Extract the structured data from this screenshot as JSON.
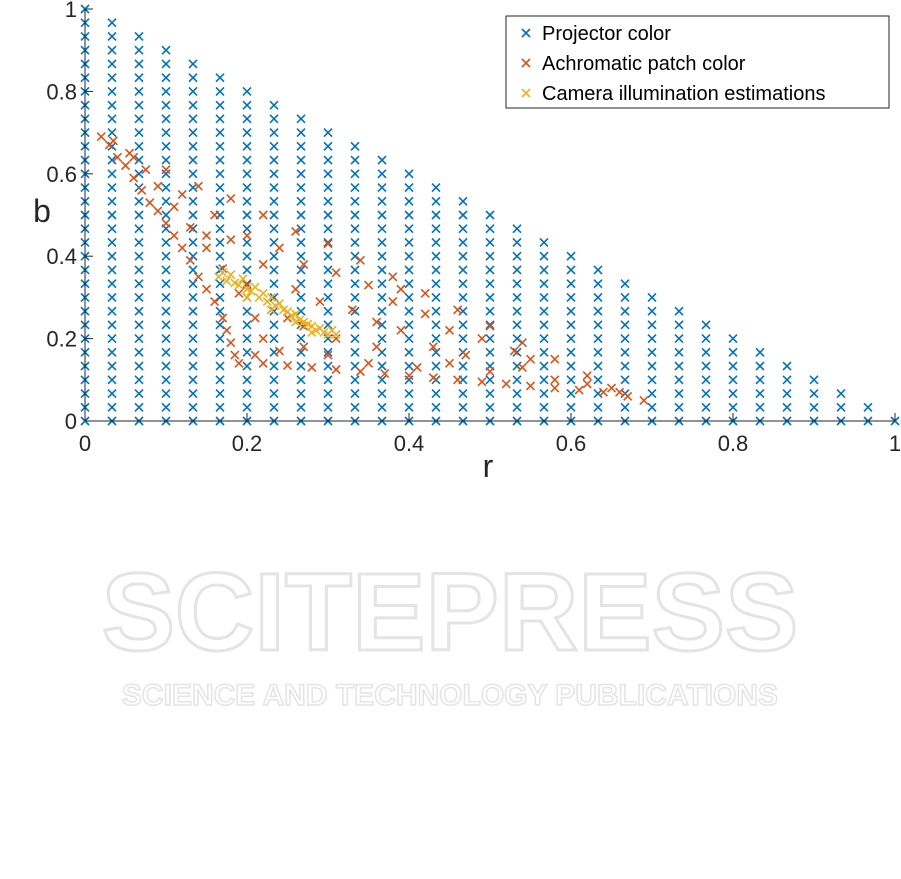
{
  "watermark": {
    "main": "SCITEPRESS",
    "sub": "SCIENCE AND TECHNOLOGY PUBLICATIONS"
  },
  "chart_data": {
    "type": "scatter",
    "xlabel": "r",
    "ylabel": "b",
    "xlim": [
      0,
      1
    ],
    "ylim": [
      0,
      1
    ],
    "xticks": [
      0,
      0.2,
      0.4,
      0.6,
      0.8,
      1
    ],
    "xtick_labels": [
      "0",
      "0.2",
      "0.4",
      "0.6",
      "0.8",
      "1"
    ],
    "yticks": [
      0,
      0.2,
      0.4,
      0.6,
      0.8,
      1
    ],
    "ytick_labels": [
      "0",
      "0.2",
      "0.4",
      "0.6",
      "0.8",
      "1"
    ],
    "grid": false,
    "legend_placement": "top-right",
    "marker": "x",
    "series": [
      {
        "name": "Projector color",
        "color": "#0072BD",
        "grid": {
          "step": 0.0333333,
          "constraint": "r + b <= 1"
        }
      },
      {
        "name": "Achromatic patch color",
        "color": "#D95319",
        "points": [
          [
            0.02,
            0.69
          ],
          [
            0.03,
            0.67
          ],
          [
            0.04,
            0.64
          ],
          [
            0.05,
            0.62
          ],
          [
            0.06,
            0.59
          ],
          [
            0.07,
            0.56
          ],
          [
            0.08,
            0.53
          ],
          [
            0.09,
            0.51
          ],
          [
            0.1,
            0.48
          ],
          [
            0.11,
            0.45
          ],
          [
            0.12,
            0.42
          ],
          [
            0.13,
            0.39
          ],
          [
            0.14,
            0.35
          ],
          [
            0.15,
            0.32
          ],
          [
            0.16,
            0.29
          ],
          [
            0.17,
            0.25
          ],
          [
            0.175,
            0.22
          ],
          [
            0.18,
            0.19
          ],
          [
            0.185,
            0.16
          ],
          [
            0.19,
            0.14
          ],
          [
            0.035,
            0.68
          ],
          [
            0.055,
            0.65
          ],
          [
            0.075,
            0.61
          ],
          [
            0.09,
            0.57
          ],
          [
            0.11,
            0.52
          ],
          [
            0.13,
            0.47
          ],
          [
            0.15,
            0.42
          ],
          [
            0.17,
            0.37
          ],
          [
            0.19,
            0.31
          ],
          [
            0.21,
            0.25
          ],
          [
            0.22,
            0.2
          ],
          [
            0.21,
            0.16
          ],
          [
            0.22,
            0.14
          ],
          [
            0.25,
            0.135
          ],
          [
            0.28,
            0.13
          ],
          [
            0.31,
            0.125
          ],
          [
            0.34,
            0.12
          ],
          [
            0.37,
            0.115
          ],
          [
            0.4,
            0.11
          ],
          [
            0.43,
            0.105
          ],
          [
            0.46,
            0.1
          ],
          [
            0.49,
            0.095
          ],
          [
            0.52,
            0.09
          ],
          [
            0.55,
            0.085
          ],
          [
            0.58,
            0.08
          ],
          [
            0.61,
            0.075
          ],
          [
            0.64,
            0.07
          ],
          [
            0.67,
            0.06
          ],
          [
            0.69,
            0.05
          ],
          [
            0.24,
            0.17
          ],
          [
            0.27,
            0.18
          ],
          [
            0.3,
            0.16
          ],
          [
            0.35,
            0.14
          ],
          [
            0.41,
            0.13
          ],
          [
            0.45,
            0.14
          ],
          [
            0.5,
            0.12
          ],
          [
            0.54,
            0.13
          ],
          [
            0.58,
            0.1
          ],
          [
            0.62,
            0.09
          ],
          [
            0.66,
            0.07
          ],
          [
            0.06,
            0.64
          ],
          [
            0.1,
            0.61
          ],
          [
            0.14,
            0.57
          ],
          [
            0.18,
            0.54
          ],
          [
            0.22,
            0.5
          ],
          [
            0.26,
            0.46
          ],
          [
            0.3,
            0.43
          ],
          [
            0.34,
            0.39
          ],
          [
            0.38,
            0.35
          ],
          [
            0.42,
            0.31
          ],
          [
            0.46,
            0.27
          ],
          [
            0.5,
            0.23
          ],
          [
            0.54,
            0.19
          ],
          [
            0.58,
            0.15
          ],
          [
            0.62,
            0.11
          ],
          [
            0.65,
            0.08
          ],
          [
            0.12,
            0.55
          ],
          [
            0.16,
            0.5
          ],
          [
            0.2,
            0.45
          ],
          [
            0.24,
            0.42
          ],
          [
            0.27,
            0.38
          ],
          [
            0.31,
            0.36
          ],
          [
            0.35,
            0.33
          ],
          [
            0.38,
            0.29
          ],
          [
            0.42,
            0.26
          ],
          [
            0.45,
            0.22
          ],
          [
            0.49,
            0.2
          ],
          [
            0.53,
            0.17
          ],
          [
            0.55,
            0.15
          ],
          [
            0.18,
            0.44
          ],
          [
            0.22,
            0.38
          ],
          [
            0.26,
            0.32
          ],
          [
            0.23,
            0.27
          ],
          [
            0.27,
            0.23
          ],
          [
            0.31,
            0.2
          ],
          [
            0.36,
            0.18
          ],
          [
            0.39,
            0.22
          ],
          [
            0.43,
            0.18
          ],
          [
            0.47,
            0.16
          ],
          [
            0.33,
            0.27
          ],
          [
            0.29,
            0.29
          ],
          [
            0.25,
            0.25
          ],
          [
            0.2,
            0.33
          ],
          [
            0.15,
            0.45
          ],
          [
            0.39,
            0.32
          ],
          [
            0.36,
            0.24
          ]
        ]
      },
      {
        "name": "Camera illumination estimations",
        "color": "#EDB120",
        "points": [
          [
            0.165,
            0.35
          ],
          [
            0.17,
            0.36
          ],
          [
            0.175,
            0.34
          ],
          [
            0.18,
            0.355
          ],
          [
            0.185,
            0.335
          ],
          [
            0.19,
            0.33
          ],
          [
            0.195,
            0.345
          ],
          [
            0.2,
            0.32
          ],
          [
            0.205,
            0.315
          ],
          [
            0.21,
            0.325
          ],
          [
            0.215,
            0.3
          ],
          [
            0.22,
            0.31
          ],
          [
            0.225,
            0.29
          ],
          [
            0.23,
            0.3
          ],
          [
            0.235,
            0.28
          ],
          [
            0.24,
            0.285
          ],
          [
            0.245,
            0.27
          ],
          [
            0.25,
            0.265
          ],
          [
            0.255,
            0.255
          ],
          [
            0.26,
            0.26
          ],
          [
            0.265,
            0.245
          ],
          [
            0.27,
            0.24
          ],
          [
            0.275,
            0.235
          ],
          [
            0.28,
            0.23
          ],
          [
            0.285,
            0.22
          ],
          [
            0.29,
            0.225
          ],
          [
            0.295,
            0.215
          ],
          [
            0.3,
            0.21
          ],
          [
            0.305,
            0.22
          ],
          [
            0.31,
            0.21
          ],
          [
            0.2,
            0.3
          ],
          [
            0.23,
            0.27
          ],
          [
            0.26,
            0.24
          ],
          [
            0.28,
            0.215
          ]
        ]
      }
    ]
  }
}
